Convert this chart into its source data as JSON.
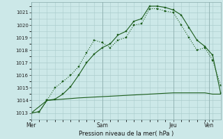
{
  "bg_color": "#cce8e8",
  "grid_color": "#aacccc",
  "line_color": "#1a5c1a",
  "xlabel": "Pression niveau de la mer( hPa )",
  "ylim": [
    1012.5,
    1021.8
  ],
  "yticks": [
    1013,
    1014,
    1015,
    1016,
    1017,
    1018,
    1019,
    1020,
    1021
  ],
  "xtick_labels": [
    "Mer",
    "Sam",
    "Jeu",
    "Ven"
  ],
  "xtick_positions": [
    0,
    0.375,
    0.75,
    0.9375
  ],
  "xlim": [
    0,
    1.0
  ],
  "series1_x": [
    0.0,
    0.042,
    0.083,
    0.125,
    0.167,
    0.208,
    0.25,
    0.292,
    0.333,
    0.375,
    0.417,
    0.458,
    0.5,
    0.542,
    0.583,
    0.625,
    0.667,
    0.708,
    0.75,
    0.792,
    0.833,
    0.875,
    0.917,
    0.958,
    1.0
  ],
  "series1_y": [
    1013.0,
    1013.1,
    1014.0,
    1015.0,
    1015.5,
    1016.0,
    1016.7,
    1017.8,
    1018.8,
    1018.6,
    1018.2,
    1018.8,
    1019.0,
    1020.0,
    1020.1,
    1021.3,
    1021.3,
    1021.1,
    1021.0,
    1020.0,
    1019.0,
    1018.0,
    1018.2,
    1017.2,
    1015.2
  ],
  "series2_x": [
    0.0,
    0.042,
    0.083,
    0.125,
    0.167,
    0.208,
    0.25,
    0.292,
    0.333,
    0.375,
    0.417,
    0.458,
    0.5,
    0.542,
    0.583,
    0.625,
    0.667,
    0.708,
    0.75,
    0.792,
    0.833,
    0.875,
    0.917,
    0.958,
    1.0
  ],
  "series2_y": [
    1013.0,
    1013.1,
    1014.0,
    1014.1,
    1014.5,
    1015.1,
    1016.0,
    1017.0,
    1017.7,
    1018.2,
    1018.5,
    1019.2,
    1019.5,
    1020.3,
    1020.5,
    1021.5,
    1021.5,
    1021.4,
    1021.2,
    1020.8,
    1019.8,
    1018.8,
    1018.3,
    1017.6,
    1014.6
  ],
  "series3_x": [
    0.0,
    0.083,
    0.167,
    0.25,
    0.375,
    0.5,
    0.625,
    0.75,
    0.833,
    0.875,
    0.917,
    0.958,
    1.0
  ],
  "series3_y": [
    1013.0,
    1014.0,
    1014.1,
    1014.2,
    1014.3,
    1014.4,
    1014.5,
    1014.6,
    1014.6,
    1014.6,
    1014.6,
    1014.5,
    1014.5
  ],
  "vline_x": [
    0.0,
    0.375,
    0.75,
    0.9375
  ],
  "minor_xticks": 8,
  "minor_yticks": 1
}
